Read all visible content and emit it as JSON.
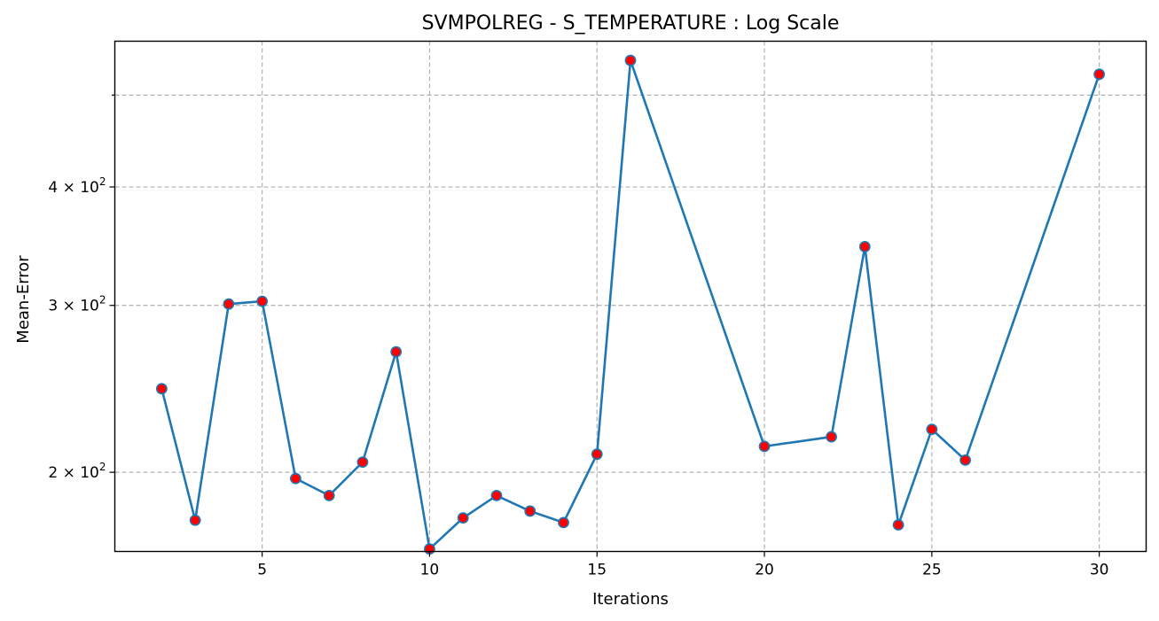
{
  "chart_data": {
    "type": "line",
    "title": "SVMPOLREG - S_TEMPERATURE : Log Scale",
    "xlabel": "Iterations",
    "ylabel": "Mean-Error",
    "xlim": [
      0.6,
      31.4
    ],
    "ylim": [
      165,
      570
    ],
    "yscale": "log",
    "grid": true,
    "x_ticks": [
      5,
      10,
      15,
      20,
      25,
      30
    ],
    "y_ticks": [
      {
        "value": 200,
        "label": "2 × 10²",
        "base": "2 × 10",
        "exp": "2"
      },
      {
        "value": 300,
        "label": "3 × 10²",
        "base": "3 × 10",
        "exp": "2"
      },
      {
        "value": 400,
        "label": "4 × 10²",
        "base": "4 × 10",
        "exp": "2"
      }
    ],
    "y_minor_ticks": [
      500
    ],
    "series": [
      {
        "line_color": "#1f77b4",
        "marker_face": "#ff0000",
        "marker_edge": "#1f77b4",
        "x": [
          2,
          3,
          4,
          5,
          6,
          7,
          8,
          9,
          10,
          11,
          12,
          13,
          14,
          15,
          16,
          20,
          22,
          23,
          24,
          25,
          26,
          30
        ],
        "y": [
          245,
          178,
          301,
          303,
          197,
          189,
          205,
          268,
          166,
          179,
          189,
          182,
          177,
          209,
          544,
          213,
          218,
          346,
          176,
          222,
          206,
          526
        ]
      }
    ]
  }
}
